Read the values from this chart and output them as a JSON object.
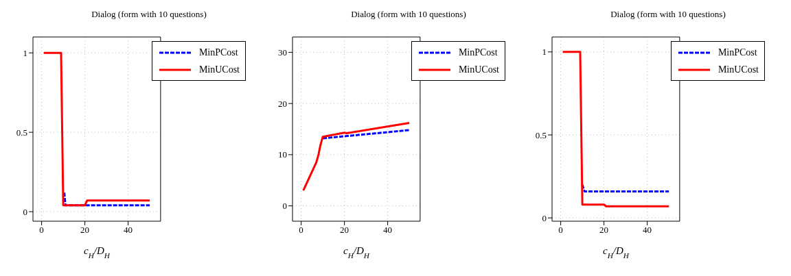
{
  "chart_data": [
    {
      "type": "line",
      "title": "Dialog (form with 10 questions)",
      "xlabel": "c$_{H}$/D$_{H}$",
      "xlim": [
        -4,
        55
      ],
      "xticks": [
        0,
        20,
        40
      ],
      "ylim": [
        -0.06,
        1.1
      ],
      "yticks": [
        0,
        0.5,
        1
      ],
      "grid": true,
      "legend": "top right",
      "marker": "none",
      "series": [
        {
          "name": "MinPCost",
          "color": "#0000ff",
          "line_style": "dashed",
          "x": [
            10.5,
            11,
            50
          ],
          "values": [
            0.12,
            0.04,
            0.04
          ]
        },
        {
          "name": "MinUCost",
          "color": "#ff0000",
          "line_style": "solid",
          "x": [
            1,
            9,
            10,
            20,
            21,
            50
          ],
          "values": [
            1,
            1,
            0.04,
            0.04,
            0.07,
            0.07
          ]
        }
      ]
    },
    {
      "type": "line",
      "title": "Dialog (form with 10 questions)",
      "xlabel": "c$_{H}$/D$_{H}$",
      "xlim": [
        -4,
        55
      ],
      "xticks": [
        0,
        20,
        40
      ],
      "ylim": [
        -3,
        33
      ],
      "yticks": [
        0,
        10,
        20,
        30
      ],
      "grid": true,
      "legend": "top right",
      "marker": "none",
      "series": [
        {
          "name": "MinPCost",
          "color": "#0000ff",
          "line_style": "dashed",
          "x": [
            10,
            20,
            50
          ],
          "values": [
            13.2,
            13.6,
            14.8
          ]
        },
        {
          "name": "MinUCost",
          "color": "#ff0000",
          "line_style": "solid",
          "x": [
            1,
            7,
            8,
            9,
            10,
            20,
            21,
            50
          ],
          "values": [
            3,
            8.5,
            10,
            12,
            13.5,
            14.3,
            14.2,
            16.2
          ]
        }
      ]
    },
    {
      "type": "line",
      "title": "Dialog (form with 10 questions)",
      "xlabel": "c$_{H}$/D$_{H}$",
      "xlim": [
        -4,
        55
      ],
      "xticks": [
        0,
        20,
        40
      ],
      "ylim": [
        -0.02,
        1.09
      ],
      "yticks": [
        0,
        0.5,
        1
      ],
      "grid": true,
      "legend": "top right",
      "marker": "none",
      "series": [
        {
          "name": "MinPCost",
          "color": "#0000ff",
          "line_style": "dashed",
          "x": [
            10,
            11,
            50
          ],
          "values": [
            0.2,
            0.16,
            0.16
          ]
        },
        {
          "name": "MinUCost",
          "color": "#ff0000",
          "line_style": "solid",
          "x": [
            1,
            9,
            10,
            20,
            21,
            50
          ],
          "values": [
            1,
            1,
            0.08,
            0.08,
            0.07,
            0.07
          ]
        }
      ]
    }
  ]
}
